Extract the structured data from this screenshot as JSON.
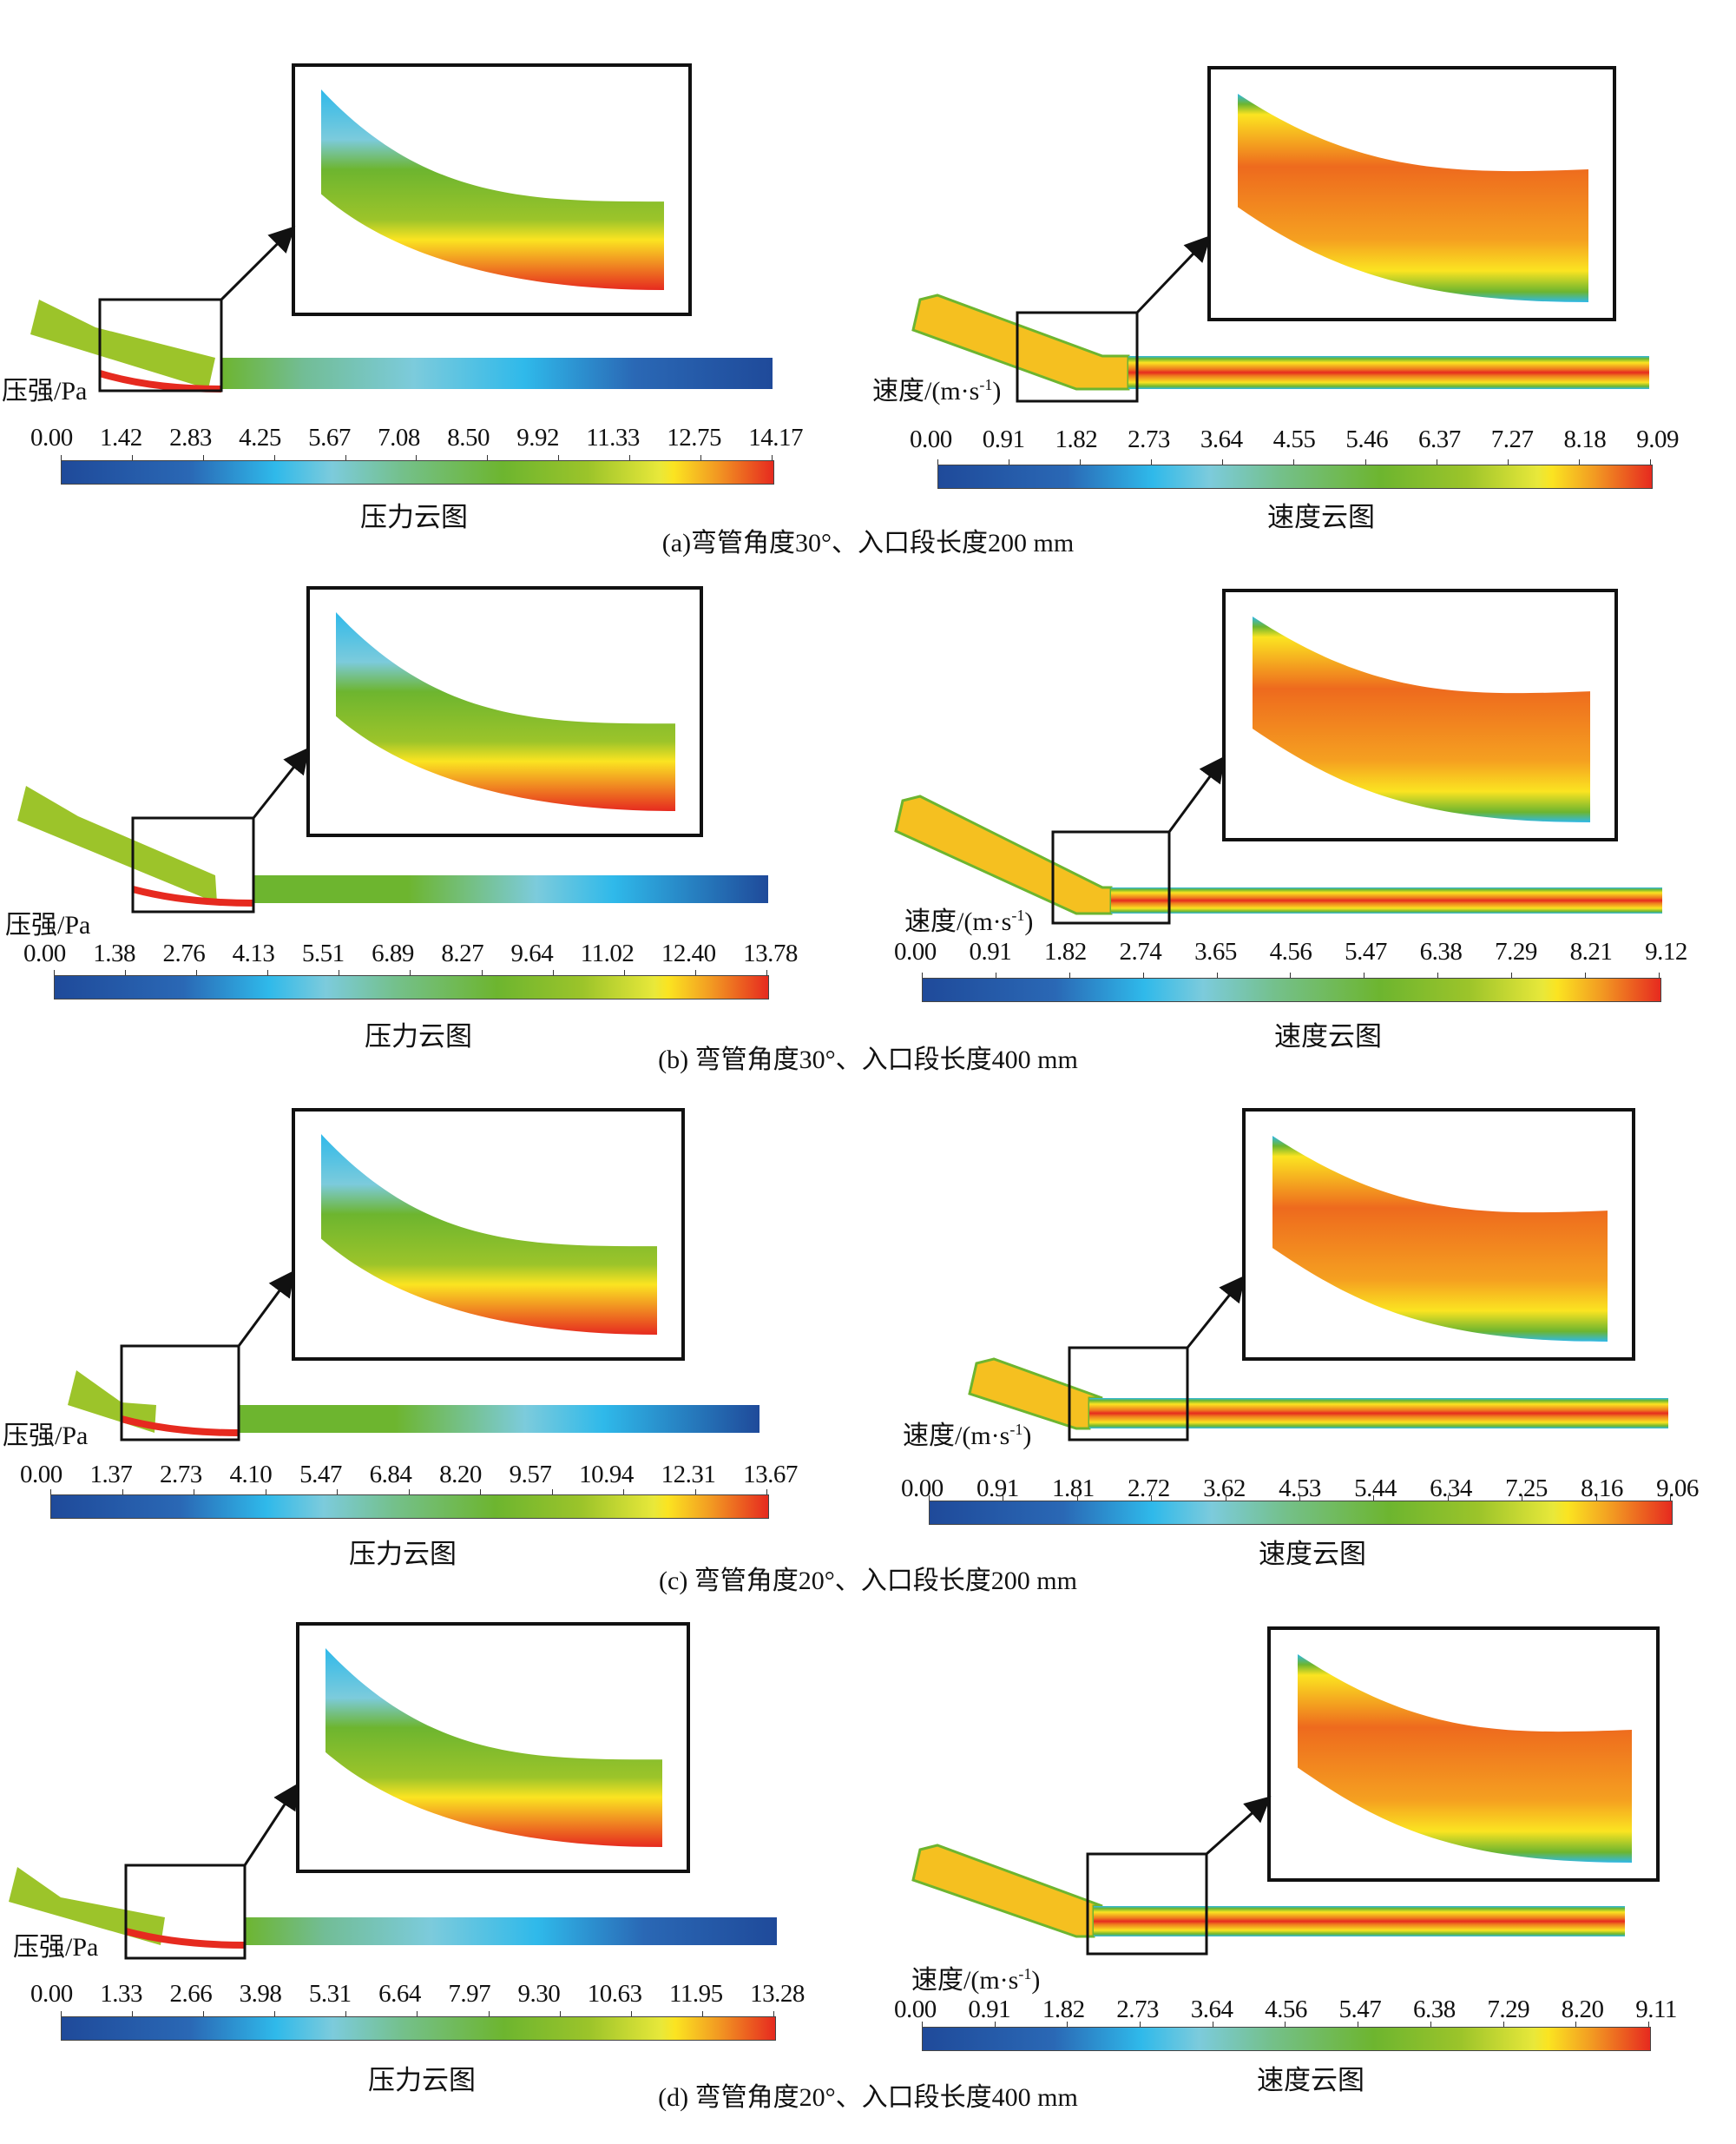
{
  "figure": {
    "pressure_unit": "压强/Pa",
    "velocity_unit_prefix": "速度/(m·s",
    "velocity_unit_sup": "-1",
    "velocity_unit_suffix": ")",
    "pressure_title": "压力云图",
    "velocity_title": "速度云图",
    "colormap": [
      "#1f4a9a",
      "#2fb9ea",
      "#7ccbdc",
      "#6db52f",
      "#fbe421",
      "#e62a1f"
    ]
  },
  "panels": [
    {
      "caption": "(a)弯管角度30°、入口段长度200 mm",
      "pressure_ticks": [
        "0.00",
        "1.42",
        "2.83",
        "4.25",
        "5.67",
        "7.08",
        "8.50",
        "9.92",
        "11.33",
        "12.75",
        "14.17"
      ],
      "velocity_ticks": [
        "0.00",
        "0.91",
        "1.82",
        "2.73",
        "3.64",
        "4.55",
        "5.46",
        "6.37",
        "7.27",
        "8.18",
        "9.09"
      ]
    },
    {
      "caption": "(b) 弯管角度30°、入口段长度400 mm",
      "pressure_ticks": [
        "0.00",
        "1.38",
        "2.76",
        "4.13",
        "5.51",
        "6.89",
        "8.27",
        "9.64",
        "11.02",
        "12.40",
        "13.78"
      ],
      "velocity_ticks": [
        "0.00",
        "0.91",
        "1.82",
        "2.74",
        "3.65",
        "4.56",
        "5.47",
        "6.38",
        "7.29",
        "8.21",
        "9.12"
      ]
    },
    {
      "caption": "(c) 弯管角度20°、入口段长度200 mm",
      "pressure_ticks": [
        "0.00",
        "1.37",
        "2.73",
        "4.10",
        "5.47",
        "6.84",
        "8.20",
        "9.57",
        "10.94",
        "12.31",
        "13.67"
      ],
      "velocity_ticks": [
        "0.00",
        "0.91",
        "1.81",
        "2.72",
        "3.62",
        "4.53",
        "5.44",
        "6.34",
        "7.25",
        "8.16",
        "9.06"
      ]
    },
    {
      "caption": "(d) 弯管角度20°、入口段长度400 mm",
      "pressure_ticks": [
        "0.00",
        "1.33",
        "2.66",
        "3.98",
        "5.31",
        "6.64",
        "7.97",
        "9.30",
        "10.63",
        "11.95",
        "13.28"
      ],
      "velocity_ticks": [
        "0.00",
        "0.91",
        "1.82",
        "2.73",
        "3.64",
        "4.56",
        "5.47",
        "6.38",
        "7.29",
        "8.20",
        "9.11"
      ]
    }
  ]
}
